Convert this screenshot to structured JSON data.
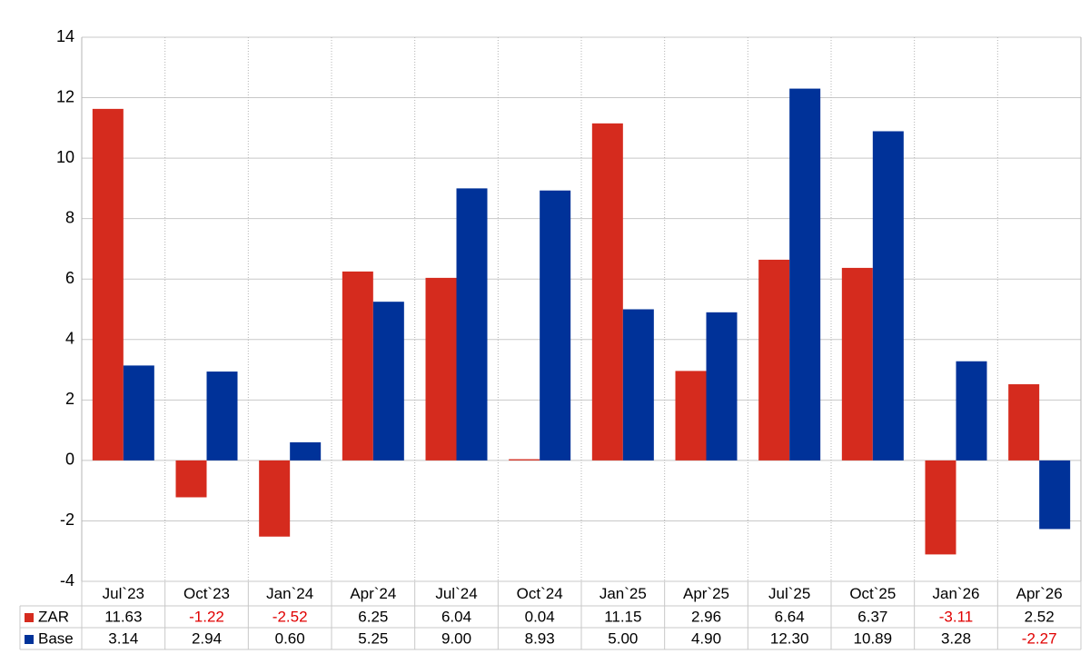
{
  "chart_data": {
    "type": "bar",
    "categories": [
      "Jul`23",
      "Oct`23",
      "Jan`24",
      "Apr`24",
      "Jul`24",
      "Oct`24",
      "Jan`25",
      "Apr`25",
      "Jul`25",
      "Oct`25",
      "Jan`26",
      "Apr`26"
    ],
    "series": [
      {
        "name": "ZAR",
        "color": "#d52b1e",
        "values": [
          11.63,
          -1.22,
          -2.52,
          6.25,
          6.04,
          0.04,
          11.15,
          2.96,
          6.64,
          6.37,
          -3.11,
          2.52
        ],
        "value_labels": [
          "11.63",
          "-1.22",
          "-2.52",
          "6.25",
          "6.04",
          "0.04",
          "11.15",
          "2.96",
          "6.64",
          "6.37",
          "-3.11",
          "2.52"
        ]
      },
      {
        "name": "Base",
        "color": "#003299",
        "values": [
          3.14,
          2.94,
          0.6,
          5.25,
          9.0,
          8.93,
          5.0,
          4.9,
          12.3,
          10.89,
          3.28,
          -2.27
        ],
        "value_labels": [
          "3.14",
          "2.94",
          "0.60",
          "5.25",
          "9.00",
          "8.93",
          "5.00",
          "4.90",
          "12.30",
          "10.89",
          "3.28",
          "-2.27"
        ]
      }
    ],
    "ylim": [
      -4,
      14
    ],
    "yticks": [
      -4,
      -2,
      0,
      2,
      4,
      6,
      8,
      10,
      12,
      14
    ],
    "grid": true,
    "negative_color": "#e00000"
  }
}
